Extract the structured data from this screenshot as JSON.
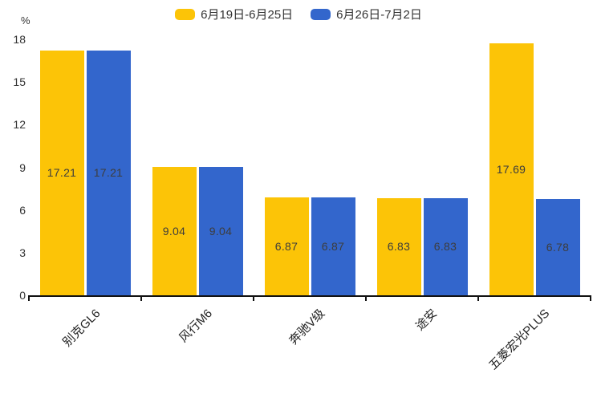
{
  "chart_data": {
    "type": "bar",
    "title": "",
    "unit": "%",
    "categories": [
      "别克GL6",
      "风行M6",
      "奔驰V级",
      "途安",
      "五菱宏光PLUS"
    ],
    "series": [
      {
        "name": "6月19日-6月25日",
        "color": "#FCC407",
        "values": [
          17.21,
          9.04,
          6.87,
          6.83,
          17.69
        ]
      },
      {
        "name": "6月26日-7月2日",
        "color": "#3366CC",
        "values": [
          17.21,
          9.04,
          6.87,
          6.83,
          6.78
        ]
      }
    ],
    "ylim": [
      0,
      18
    ],
    "yticks": [
      0,
      3,
      6,
      9,
      12,
      15,
      18
    ],
    "grid": false,
    "legend_position": "top-center",
    "value_labels": "inside-middle",
    "x_label_rotation": 45,
    "axis_color": "#111111",
    "text_color": "#333333",
    "background": "#ffffff"
  }
}
